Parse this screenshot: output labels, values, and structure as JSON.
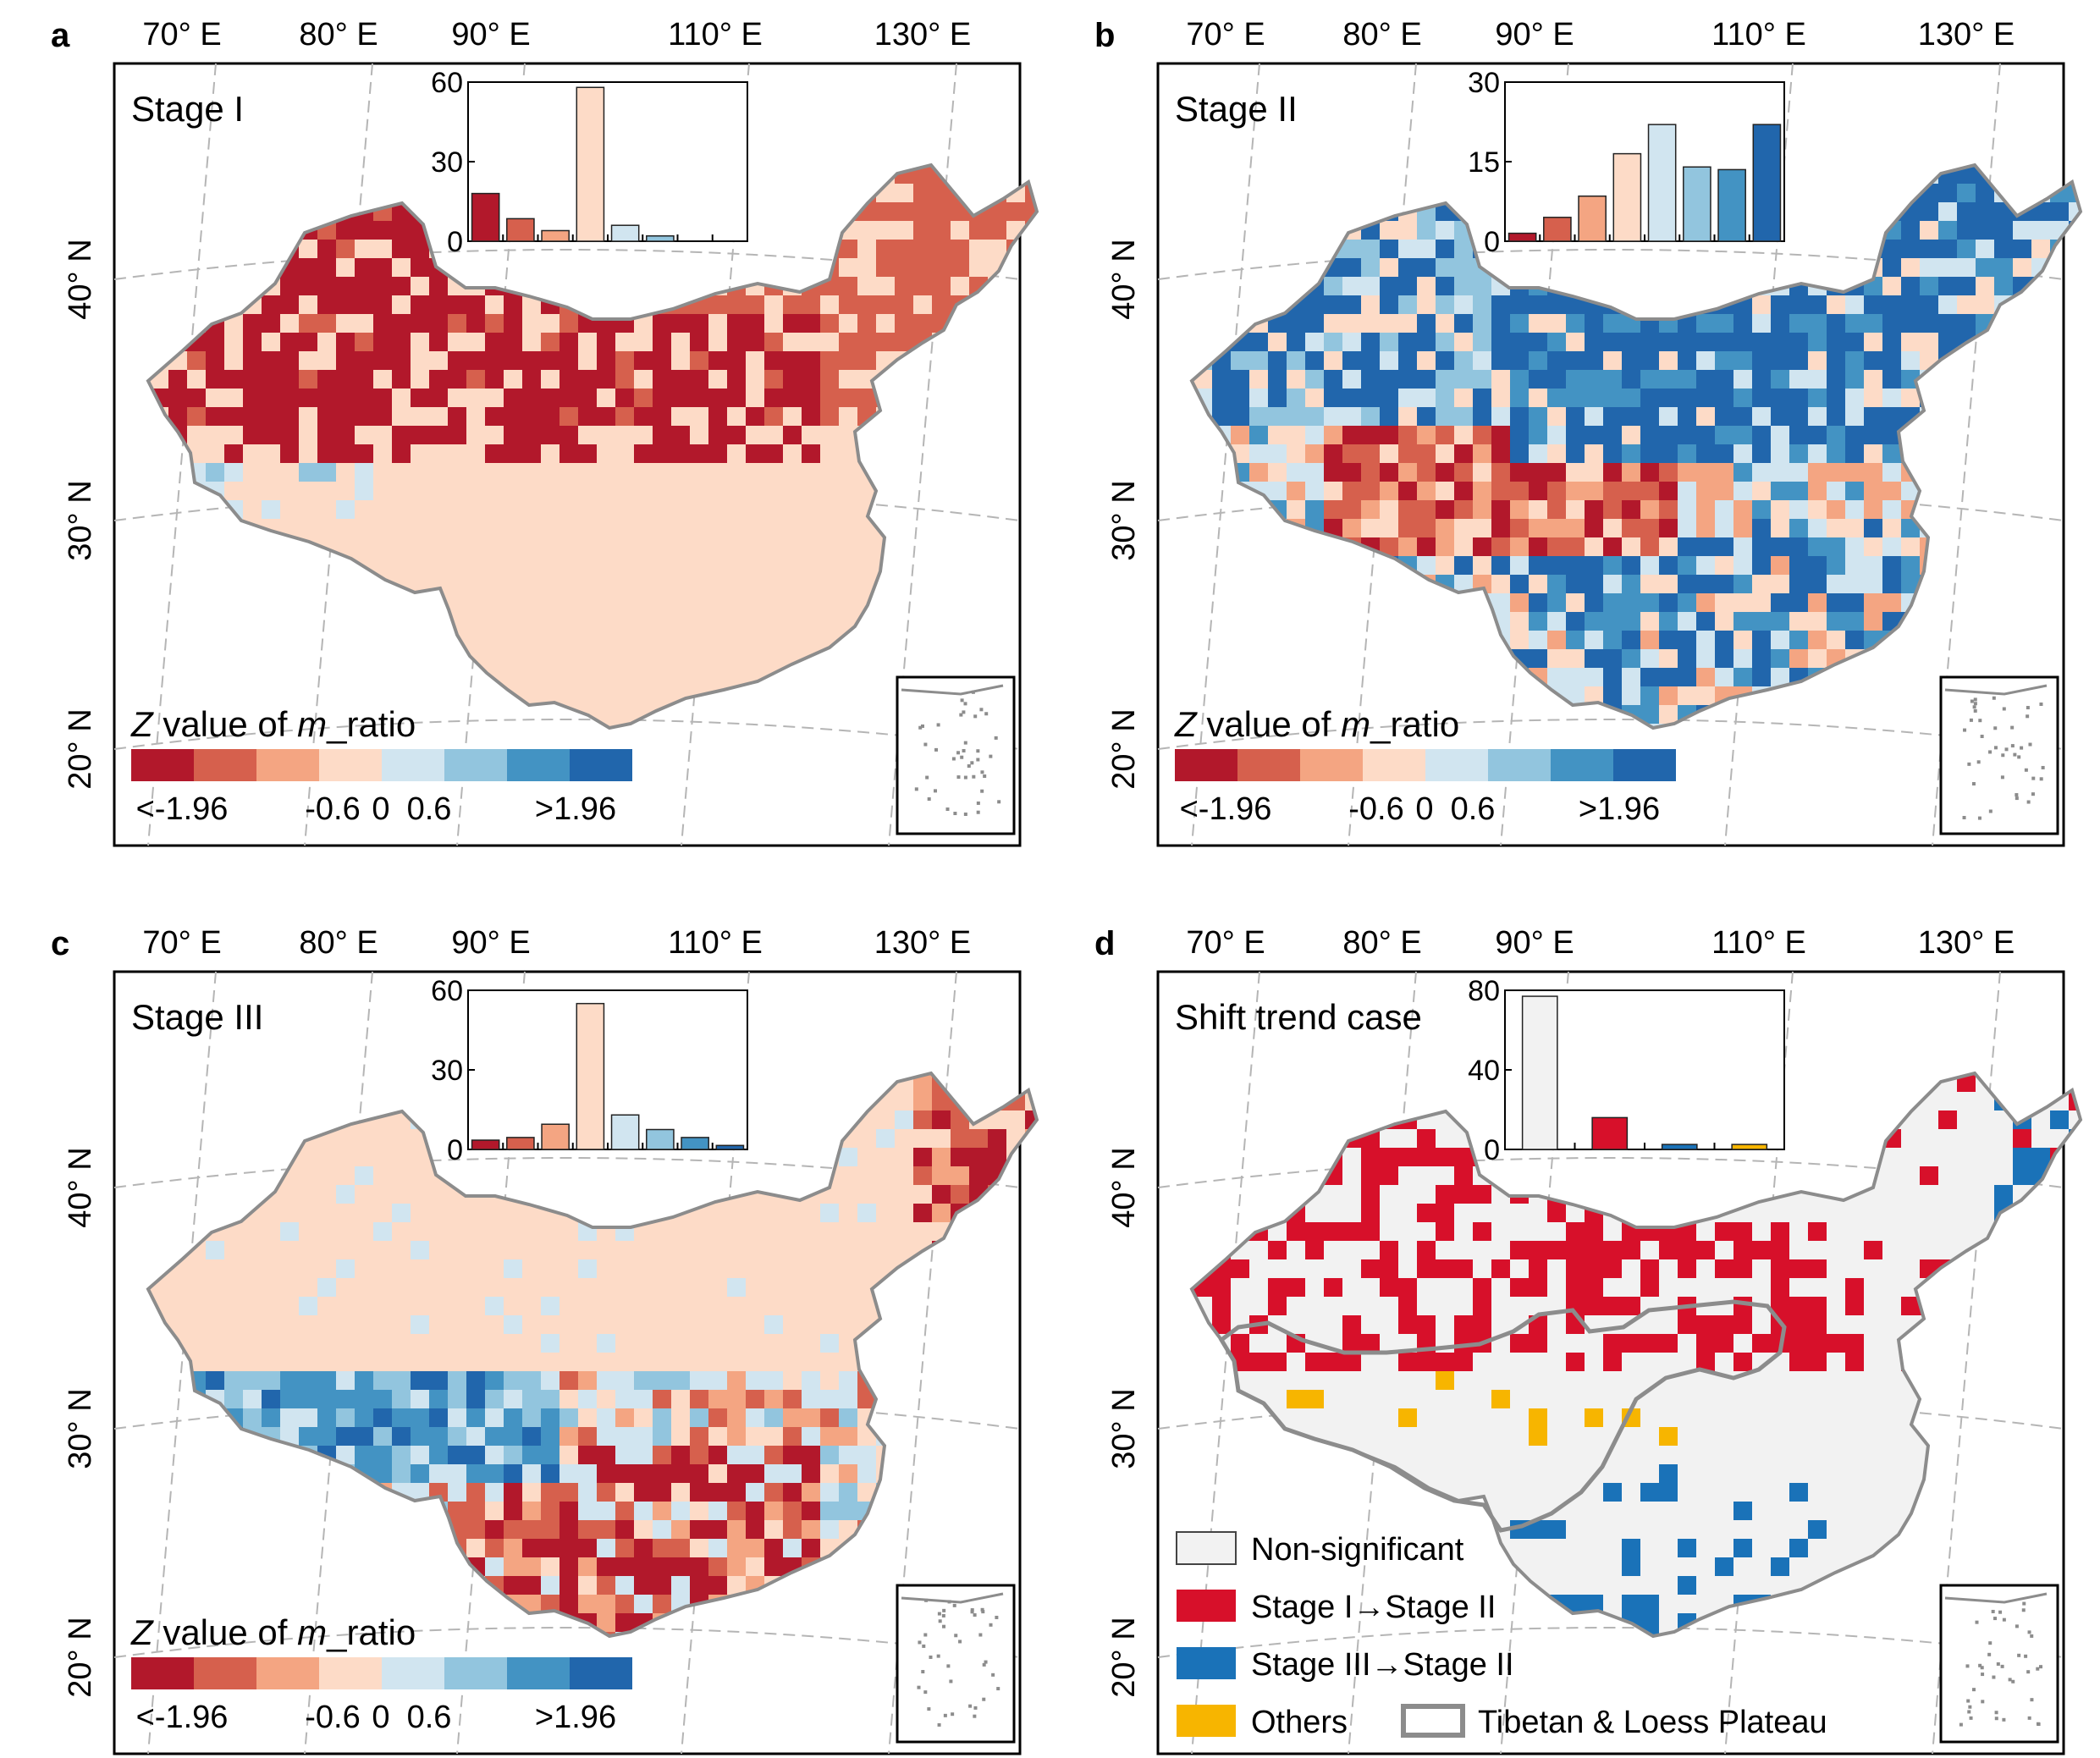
{
  "axes": {
    "lon_labels": [
      "70° E",
      "80° E",
      "90° E",
      "110° E",
      "130° E"
    ],
    "lat_labels": [
      "40° N",
      "30° N",
      "20° N"
    ]
  },
  "colors": {
    "z_bins": [
      "#b2182b",
      "#d6604d",
      "#f4a582",
      "#fddbc7",
      "#d1e5f0",
      "#92c5de",
      "#4393c3",
      "#2166ac"
    ],
    "non_significant": "#f2f2f2",
    "stage1_to_stage2": "#d7102a",
    "stage3_to_stage2": "#1a72b8",
    "others": "#f7b500",
    "plateau_outline": "#8c8c8c",
    "coast": "#8c8c8c"
  },
  "colorbar": {
    "title_italic_z": "Z",
    "title_mid": " value of ",
    "title_italic_m": "m",
    "title_end": "_ratio",
    "ticks": [
      "<-1.96",
      "-0.6",
      "0",
      "0.6",
      ">1.96"
    ]
  },
  "panels": [
    {
      "letter": "a",
      "title": "Stage I",
      "inset_chart": {
        "type": "bar",
        "ylim": [
          0,
          60
        ],
        "yticks": [
          "0",
          "30",
          "60"
        ],
        "values": [
          18,
          8.5,
          4,
          58,
          6,
          2,
          0,
          0
        ]
      },
      "map_pattern": "stage1"
    },
    {
      "letter": "b",
      "title": "Stage II",
      "inset_chart": {
        "type": "bar",
        "ylim": [
          0,
          30
        ],
        "yticks": [
          "0",
          "15",
          "30"
        ],
        "values": [
          1.5,
          4.5,
          8.5,
          16.5,
          22,
          14,
          13.5,
          22
        ]
      },
      "map_pattern": "stage2"
    },
    {
      "letter": "c",
      "title": "Stage III",
      "inset_chart": {
        "type": "bar",
        "ylim": [
          0,
          60
        ],
        "yticks": [
          "0",
          "30",
          "60"
        ],
        "values": [
          3.5,
          4.5,
          9.5,
          55,
          13,
          7.5,
          4.5,
          1.5
        ]
      },
      "map_pattern": "stage3"
    },
    {
      "letter": "d",
      "title": "Shift trend case",
      "inset_chart": {
        "type": "bar",
        "ylim": [
          0,
          80
        ],
        "yticks": [
          "0",
          "40",
          "80"
        ],
        "values": [
          77,
          16,
          2.5,
          2.5
        ]
      },
      "map_pattern": "shift",
      "legend": [
        {
          "label": "Non-significant",
          "color_key": "non_significant"
        },
        {
          "label": "Stage I→Stage II",
          "color_key": "stage1_to_stage2"
        },
        {
          "label": "Stage III→Stage II",
          "color_key": "stage3_to_stage2"
        },
        {
          "label": "Others",
          "color_key": "others"
        }
      ],
      "outline_legend": "Tibetan & Loess Plateau"
    }
  ]
}
